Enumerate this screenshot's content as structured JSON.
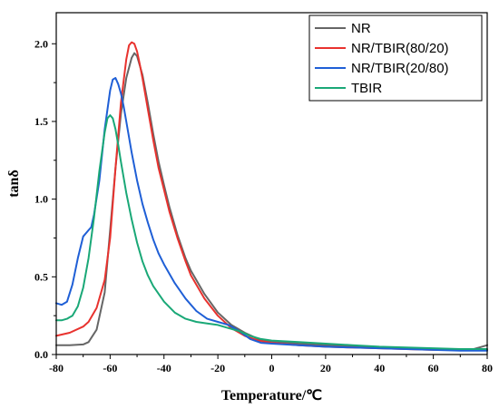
{
  "chart_data": {
    "type": "line",
    "xlabel": "Temperature/℃",
    "ylabel": "tanδ",
    "xlim": [
      -80,
      80
    ],
    "ylim": [
      0,
      2.2
    ],
    "xticks": [
      -80,
      -60,
      -40,
      -20,
      0,
      20,
      40,
      60,
      80
    ],
    "yticks": [
      0.0,
      0.5,
      1.0,
      1.5,
      2.0
    ],
    "ytick_labels": [
      "0.0",
      "0.5",
      "1.0",
      "1.5",
      "2.0"
    ],
    "grid": false,
    "legend_position": "top-right",
    "series": [
      {
        "name": "NR",
        "color": "#666666",
        "x": [
          -80,
          -75,
          -70,
          -68,
          -65,
          -62,
          -60,
          -58,
          -56,
          -54,
          -52,
          -51,
          -50,
          -48,
          -46,
          -44,
          -42,
          -40,
          -38,
          -35,
          -32,
          -30,
          -25,
          -20,
          -15,
          -10,
          -5,
          0,
          10,
          20,
          30,
          40,
          50,
          60,
          70,
          75,
          78,
          80
        ],
        "y": [
          0.06,
          0.06,
          0.065,
          0.08,
          0.16,
          0.4,
          0.8,
          1.2,
          1.55,
          1.78,
          1.91,
          1.94,
          1.92,
          1.8,
          1.62,
          1.42,
          1.24,
          1.09,
          0.95,
          0.77,
          0.62,
          0.54,
          0.39,
          0.27,
          0.19,
          0.14,
          0.1,
          0.085,
          0.07,
          0.06,
          0.05,
          0.045,
          0.04,
          0.035,
          0.035,
          0.035,
          0.05,
          0.06
        ]
      },
      {
        "name": "NR/TBIR(80/20)",
        "color": "#e8322e",
        "x": [
          -80,
          -75,
          -70,
          -68,
          -65,
          -62,
          -60,
          -58,
          -56,
          -54,
          -53,
          -52,
          -51,
          -50,
          -49,
          -48,
          -46,
          -44,
          -42,
          -40,
          -38,
          -35,
          -32,
          -30,
          -25,
          -20,
          -15,
          -10,
          -5,
          0,
          10,
          20,
          30,
          40,
          50,
          60,
          70,
          80
        ],
        "y": [
          0.12,
          0.14,
          0.18,
          0.21,
          0.3,
          0.48,
          0.75,
          1.2,
          1.62,
          1.9,
          1.99,
          2.01,
          2.0,
          1.95,
          1.87,
          1.78,
          1.58,
          1.38,
          1.2,
          1.06,
          0.92,
          0.75,
          0.6,
          0.51,
          0.36,
          0.25,
          0.17,
          0.12,
          0.09,
          0.075,
          0.06,
          0.05,
          0.045,
          0.04,
          0.035,
          0.03,
          0.03,
          0.03
        ]
      },
      {
        "name": "NR/TBIR(20/80)",
        "color": "#1f5fd6",
        "x": [
          -80,
          -78,
          -76,
          -74,
          -72,
          -70,
          -68,
          -67,
          -66,
          -64,
          -62,
          -60,
          -59,
          -58,
          -57,
          -56,
          -55,
          -54,
          -52,
          -50,
          -48,
          -46,
          -44,
          -42,
          -40,
          -36,
          -32,
          -28,
          -24,
          -20,
          -16,
          -12,
          -8,
          -4,
          0,
          10,
          20,
          30,
          40,
          50,
          60,
          70,
          80
        ],
        "y": [
          0.33,
          0.32,
          0.34,
          0.45,
          0.62,
          0.76,
          0.8,
          0.82,
          0.9,
          1.12,
          1.45,
          1.7,
          1.77,
          1.78,
          1.74,
          1.68,
          1.6,
          1.5,
          1.3,
          1.12,
          0.97,
          0.85,
          0.74,
          0.65,
          0.58,
          0.46,
          0.36,
          0.28,
          0.23,
          0.21,
          0.19,
          0.15,
          0.1,
          0.075,
          0.07,
          0.06,
          0.05,
          0.045,
          0.04,
          0.035,
          0.03,
          0.025,
          0.025
        ]
      },
      {
        "name": "TBIR",
        "color": "#1aa877",
        "x": [
          -80,
          -78,
          -76,
          -75,
          -74,
          -72,
          -70,
          -68,
          -66,
          -64,
          -62,
          -61,
          -60,
          -59,
          -58,
          -57,
          -56,
          -54,
          -52,
          -50,
          -48,
          -46,
          -44,
          -40,
          -36,
          -32,
          -28,
          -24,
          -20,
          -16,
          -12,
          -8,
          -4,
          0,
          10,
          20,
          30,
          40,
          50,
          60,
          70,
          80
        ],
        "y": [
          0.22,
          0.22,
          0.23,
          0.24,
          0.25,
          0.31,
          0.43,
          0.62,
          0.88,
          1.18,
          1.43,
          1.52,
          1.54,
          1.52,
          1.45,
          1.35,
          1.24,
          1.04,
          0.87,
          0.72,
          0.6,
          0.51,
          0.44,
          0.34,
          0.27,
          0.23,
          0.21,
          0.2,
          0.19,
          0.17,
          0.15,
          0.12,
          0.1,
          0.09,
          0.08,
          0.07,
          0.06,
          0.05,
          0.045,
          0.04,
          0.035,
          0.035
        ]
      }
    ]
  }
}
